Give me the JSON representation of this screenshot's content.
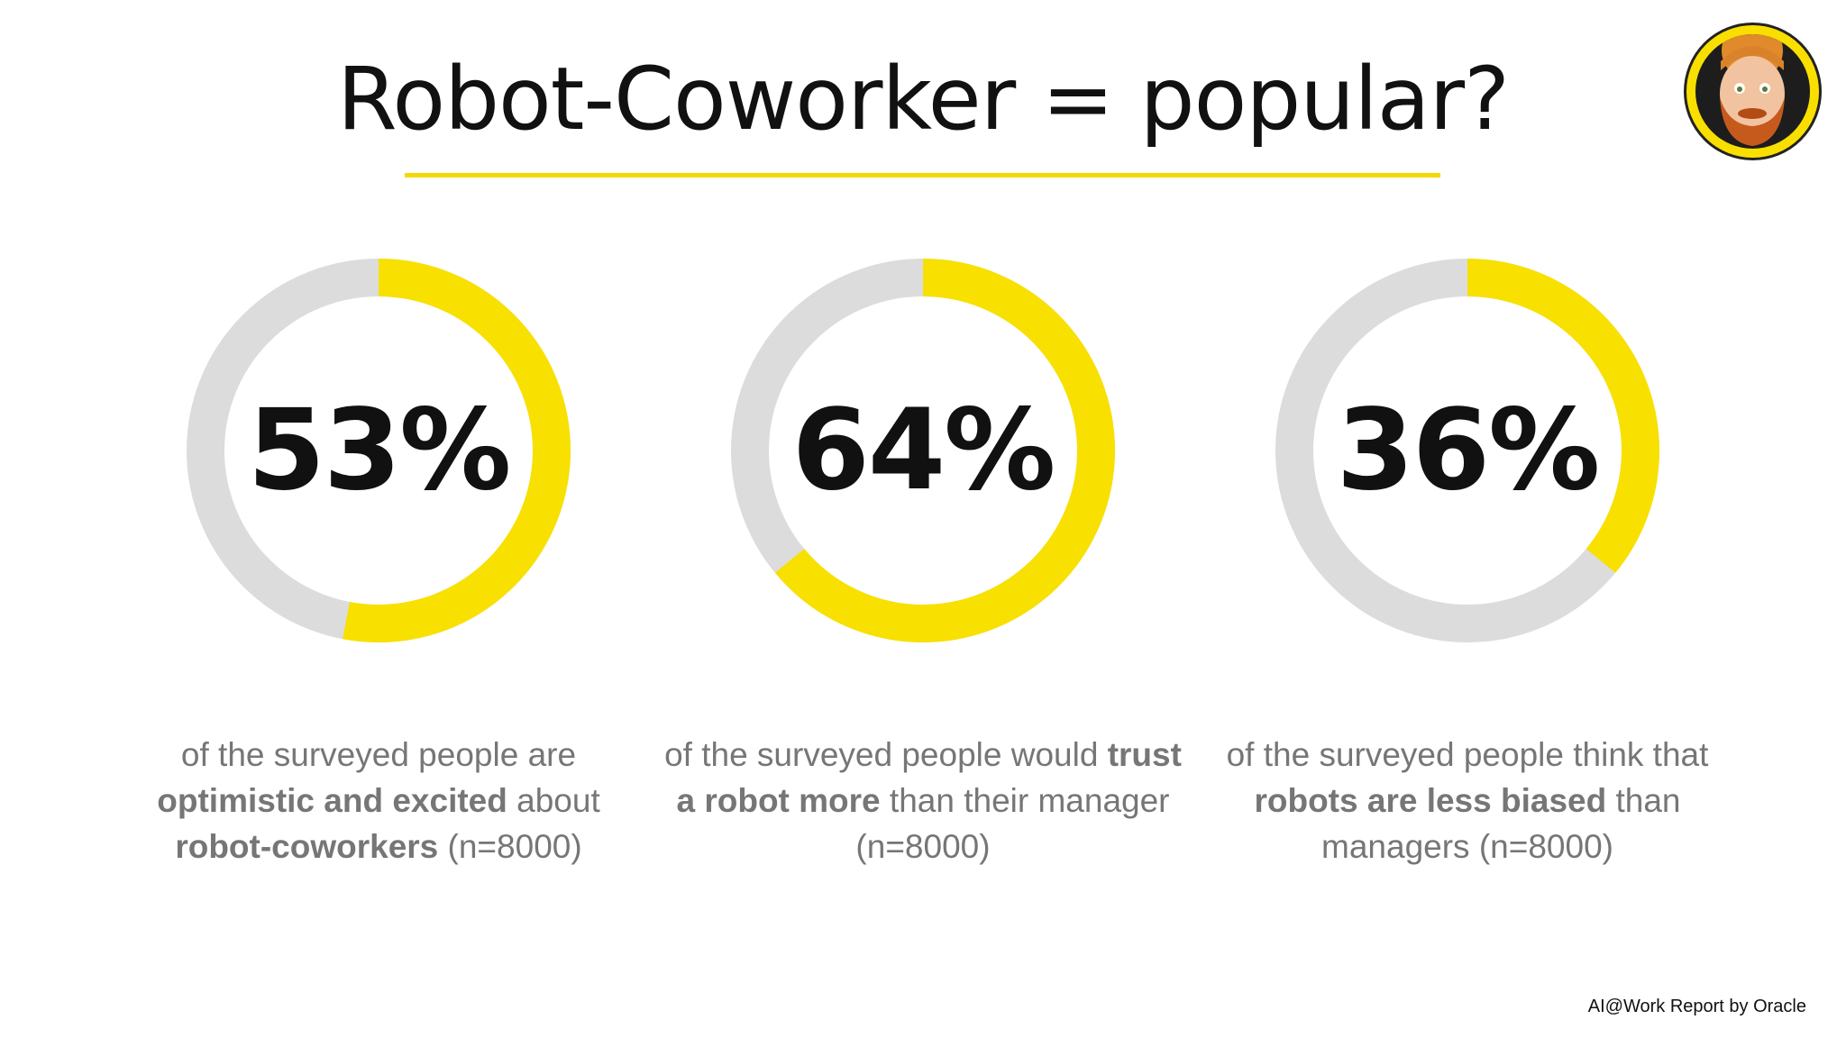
{
  "title": "Robot-Coworker = popular?",
  "colors": {
    "accent": "#f8e000",
    "track": "#dcdcdc",
    "text": "#111111",
    "caption": "#767676"
  },
  "chart_data": {
    "type": "pie",
    "items": [
      {
        "value": 53,
        "label": "53%",
        "caption": [
          {
            "text": "of the surveyed people are ",
            "bold": false
          },
          {
            "text": "optimistic and excited",
            "bold": true
          },
          {
            "text": " about ",
            "bold": false
          },
          {
            "text": "robot-coworkers",
            "bold": true
          },
          {
            "text": " (n=8000)",
            "bold": false
          }
        ]
      },
      {
        "value": 64,
        "label": "64%",
        "caption": [
          {
            "text": "of the surveyed people would ",
            "bold": false
          },
          {
            "text": "trust a robot more",
            "bold": true
          },
          {
            "text": " than their manager (n=8000)",
            "bold": false
          }
        ]
      },
      {
        "value": 36,
        "label": "36%",
        "caption": [
          {
            "text": "of the surveyed people think that ",
            "bold": false
          },
          {
            "text": "robots are less biased",
            "bold": true
          },
          {
            "text": " than managers (n=8000)",
            "bold": false
          }
        ]
      }
    ]
  },
  "source": "AI@Work Report by Oracle",
  "avatar": {
    "icon": "avatar-icon"
  }
}
